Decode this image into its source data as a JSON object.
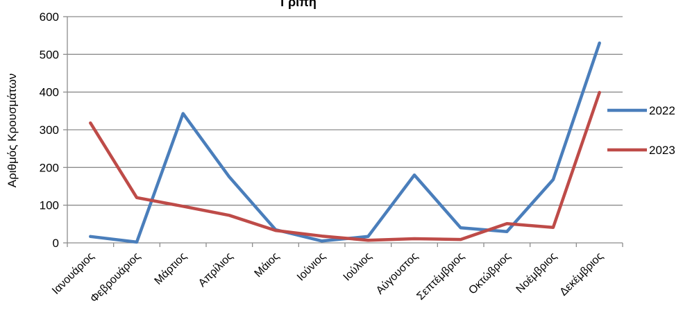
{
  "chart_data": {
    "type": "line",
    "title": "Γρίπη",
    "xlabel": "",
    "ylabel": "Αριθμός Κρουσμάτων",
    "ylim": [
      0,
      600
    ],
    "yticks": [
      0,
      100,
      200,
      300,
      400,
      500,
      600
    ],
    "grid": true,
    "legend_position": "right",
    "categories": [
      "Ιανουάριος",
      "Φεβρουάριος",
      "Μάρτιος",
      "Απρίλιος",
      "Μάιος",
      "Ιούνιος",
      "Ιούλιος",
      "Αύγουστος",
      "Σεπτέμβριος",
      "Οκτώβριος",
      "Νοέμβριος",
      "Δεκέμβριος"
    ],
    "series": [
      {
        "name": "2022",
        "color": "#4a7ebb",
        "values": [
          17,
          2,
          343,
          175,
          35,
          5,
          17,
          180,
          40,
          30,
          168,
          530
        ]
      },
      {
        "name": "2023",
        "color": "#be4b48",
        "values": [
          318,
          120,
          97,
          73,
          33,
          18,
          7,
          11,
          9,
          51,
          41,
          399
        ]
      }
    ]
  }
}
